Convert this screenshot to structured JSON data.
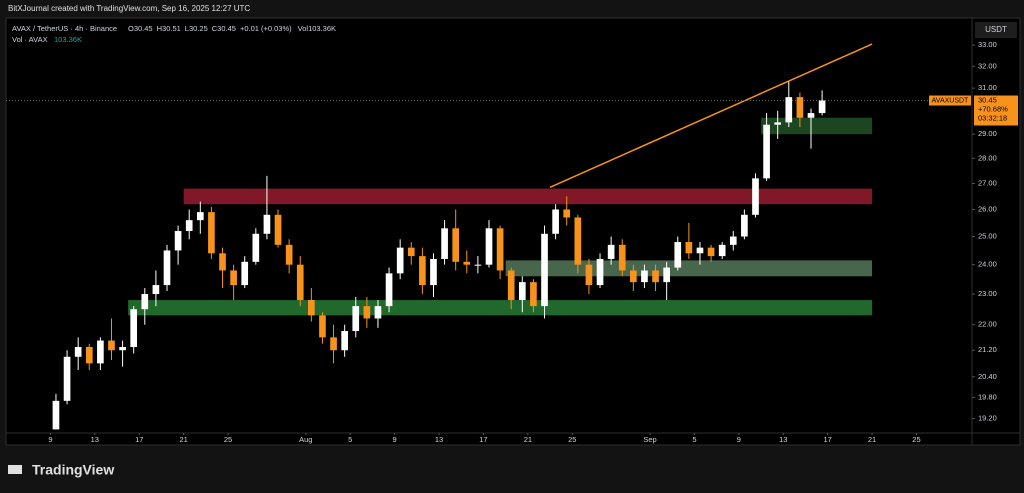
{
  "header": {
    "credit": "BitXJournal created with TradingView.com, Sep 16, 2025 12:27 UTC",
    "logo": "TradingView"
  },
  "chart_data": {
    "type": "candlestick",
    "symbol": "AVAX / TetherUS · 4h · Binance",
    "ohlc": [
      "O30.45",
      "H30.51",
      "L30.25",
      "C30.45",
      "+0.01 (+0.03%)"
    ],
    "volume_label": "Vol103.36K",
    "volume_series": "Vol · AVAX",
    "volume_last": "103.36K",
    "currency": "USDT",
    "log_scale": true,
    "up_color": "#ffffff",
    "down_color": "#f7931a",
    "ylim": [
      18.83,
      34.32
    ],
    "yticks": [
      {
        "value": 33,
        "label": "33.00"
      },
      {
        "value": 32,
        "label": "32.00"
      },
      {
        "value": 31,
        "label": "31.00"
      },
      {
        "value": 29,
        "label": "29.00"
      },
      {
        "value": 28,
        "label": "28.00"
      },
      {
        "value": 27,
        "label": "27.00"
      },
      {
        "value": 26,
        "label": "26.00"
      },
      {
        "value": 25,
        "label": "25.00"
      },
      {
        "value": 24,
        "label": "24.00"
      },
      {
        "value": 23,
        "label": "23.00"
      },
      {
        "value": 22,
        "label": "22.00"
      },
      {
        "value": 21.2,
        "label": "21.20"
      },
      {
        "value": 20.4,
        "label": "20.40"
      },
      {
        "value": 19.8,
        "label": "19.80"
      },
      {
        "value": 19.2,
        "label": "19.20"
      }
    ],
    "xlim": [
      "2025-07-05",
      "2025-09-30"
    ],
    "xticks": [
      {
        "value": "2025-07-09",
        "label": "9"
      },
      {
        "value": "2025-07-13",
        "label": "13"
      },
      {
        "value": "2025-07-17",
        "label": "17"
      },
      {
        "value": "2025-07-21",
        "label": "21"
      },
      {
        "value": "2025-07-25",
        "label": "25"
      },
      {
        "value": "2025-08-01",
        "label": "Aug"
      },
      {
        "value": "2025-08-05",
        "label": "5"
      },
      {
        "value": "2025-08-09",
        "label": "9"
      },
      {
        "value": "2025-08-13",
        "label": "13"
      },
      {
        "value": "2025-08-17",
        "label": "17"
      },
      {
        "value": "2025-08-21",
        "label": "21"
      },
      {
        "value": "2025-08-25",
        "label": "25"
      },
      {
        "value": "2025-09-01",
        "label": "Sep"
      },
      {
        "value": "2025-09-05",
        "label": "5"
      },
      {
        "value": "2025-09-09",
        "label": "9"
      },
      {
        "value": "2025-09-13",
        "label": "13"
      },
      {
        "value": "2025-09-17",
        "label": "17"
      },
      {
        "value": "2025-09-21",
        "label": "21"
      },
      {
        "value": "2025-09-25",
        "label": "25"
      }
    ],
    "x": [
      "2025-07-09",
      "2025-07-10",
      "2025-07-11",
      "2025-07-12",
      "2025-07-13",
      "2025-07-14",
      "2025-07-15",
      "2025-07-16",
      "2025-07-17",
      "2025-07-18",
      "2025-07-19",
      "2025-07-20",
      "2025-07-21",
      "2025-07-22",
      "2025-07-23",
      "2025-07-24",
      "2025-07-25",
      "2025-07-26",
      "2025-07-27",
      "2025-07-28",
      "2025-07-29",
      "2025-07-30",
      "2025-07-31",
      "2025-08-01",
      "2025-08-02",
      "2025-08-03",
      "2025-08-04",
      "2025-08-05",
      "2025-08-06",
      "2025-08-07",
      "2025-08-08",
      "2025-08-09",
      "2025-08-10",
      "2025-08-11",
      "2025-08-12",
      "2025-08-13",
      "2025-08-14",
      "2025-08-15",
      "2025-08-16",
      "2025-08-17",
      "2025-08-18",
      "2025-08-19",
      "2025-08-20",
      "2025-08-21",
      "2025-08-22",
      "2025-08-23",
      "2025-08-24",
      "2025-08-25",
      "2025-08-26",
      "2025-08-27",
      "2025-08-28",
      "2025-08-29",
      "2025-08-30",
      "2025-08-31",
      "2025-09-01",
      "2025-09-02",
      "2025-09-03",
      "2025-09-04",
      "2025-09-05",
      "2025-09-06",
      "2025-09-07",
      "2025-09-08",
      "2025-09-09",
      "2025-09-10",
      "2025-09-11",
      "2025-09-12",
      "2025-09-13",
      "2025-09-14",
      "2025-09-15",
      "2025-09-16"
    ],
    "open": [
      18.9,
      19.7,
      21.0,
      21.3,
      20.8,
      21.5,
      21.2,
      21.3,
      22.5,
      23.0,
      23.3,
      24.5,
      25.2,
      25.6,
      25.9,
      24.4,
      23.8,
      23.3,
      24.1,
      25.1,
      25.8,
      24.7,
      24.0,
      22.8,
      22.3,
      21.6,
      21.2,
      21.8,
      22.6,
      22.2,
      22.6,
      23.7,
      24.6,
      24.3,
      23.3,
      24.2,
      25.3,
      24.1,
      24.0,
      24.0,
      25.3,
      23.8,
      22.8,
      23.4,
      22.6,
      25.1,
      26.0,
      25.7,
      24.0,
      23.3,
      24.2,
      24.7,
      23.8,
      23.4,
      23.8,
      23.4,
      23.9,
      24.8,
      24.4,
      24.6,
      24.3,
      24.7,
      25.0,
      25.8,
      27.2,
      29.4,
      29.5,
      30.6,
      29.7,
      29.9
    ],
    "high": [
      19.9,
      21.2,
      21.6,
      21.4,
      21.6,
      22.2,
      21.5,
      22.6,
      23.2,
      23.8,
      24.7,
      25.4,
      26.0,
      26.3,
      26.1,
      24.6,
      24.0,
      24.3,
      25.3,
      27.3,
      26.0,
      24.9,
      24.3,
      23.2,
      22.4,
      22.0,
      22.0,
      22.9,
      22.9,
      22.8,
      23.9,
      24.9,
      24.8,
      24.6,
      24.4,
      25.6,
      26.0,
      24.5,
      24.3,
      25.6,
      25.4,
      23.9,
      23.6,
      23.5,
      25.4,
      26.2,
      26.5,
      25.8,
      24.2,
      24.4,
      25.0,
      24.9,
      24.0,
      24.0,
      24.0,
      24.1,
      25.0,
      25.5,
      24.8,
      24.7,
      24.8,
      25.2,
      26.0,
      27.4,
      29.9,
      30.0,
      31.3,
      30.8,
      30.1,
      30.9
    ],
    "low": [
      18.9,
      19.6,
      20.6,
      20.6,
      20.6,
      20.9,
      20.7,
      21.1,
      22.0,
      22.6,
      23.1,
      24.0,
      24.9,
      25.1,
      24.2,
      23.2,
      22.8,
      23.2,
      24.0,
      24.9,
      24.6,
      23.7,
      22.6,
      22.1,
      21.4,
      20.8,
      21.0,
      21.6,
      21.9,
      21.9,
      22.4,
      23.5,
      24.0,
      23.0,
      22.9,
      24.0,
      23.8,
      23.7,
      23.7,
      23.9,
      23.5,
      22.5,
      22.4,
      22.4,
      22.2,
      24.9,
      25.4,
      23.7,
      23.0,
      23.2,
      24.0,
      23.6,
      23.1,
      23.2,
      23.1,
      22.8,
      23.8,
      24.2,
      24.0,
      24.1,
      24.2,
      24.5,
      24.9,
      25.7,
      27.1,
      28.8,
      29.3,
      29.3,
      28.4,
      29.8
    ],
    "close": [
      19.7,
      21.0,
      21.3,
      20.8,
      21.5,
      21.2,
      21.3,
      22.5,
      23.0,
      23.3,
      24.5,
      25.2,
      25.6,
      25.9,
      24.4,
      23.8,
      23.3,
      24.1,
      25.1,
      25.8,
      24.7,
      24.0,
      22.8,
      22.3,
      21.6,
      21.2,
      21.8,
      22.6,
      22.2,
      22.6,
      23.7,
      24.6,
      24.3,
      23.3,
      24.2,
      25.3,
      24.1,
      24.0,
      24.0,
      25.3,
      23.8,
      22.8,
      23.4,
      22.6,
      25.1,
      26.0,
      25.7,
      24.0,
      23.3,
      24.2,
      24.7,
      23.8,
      23.4,
      23.8,
      23.4,
      23.9,
      24.8,
      24.4,
      24.6,
      24.3,
      24.7,
      25.0,
      25.8,
      27.2,
      29.4,
      29.5,
      30.6,
      29.7,
      29.9,
      30.45
    ],
    "zones": [
      {
        "low": 26.2,
        "high": 26.8,
        "start": "2025-07-21",
        "end": "2025-09-21",
        "color": "rgba(160,30,50,0.8)"
      },
      {
        "low": 22.3,
        "high": 22.8,
        "start": "2025-07-16",
        "end": "2025-09-21",
        "color": "rgba(40,130,55,0.8)"
      },
      {
        "low": 23.6,
        "high": 24.15,
        "start": "2025-08-19",
        "end": "2025-09-21",
        "color": "rgba(120,170,125,0.6)"
      },
      {
        "low": 29.0,
        "high": 29.7,
        "start": "2025-09-11",
        "end": "2025-09-21",
        "color": "rgba(40,100,45,0.7)"
      }
    ],
    "trendline": {
      "x": [
        "2025-08-23",
        "2025-09-21"
      ],
      "y": [
        26.85,
        33.05
      ],
      "color": "#f7931a"
    },
    "price_label": {
      "symbol": "AVAXUSDT",
      "price": 30.45,
      "change": "+70.68%",
      "countdown": "03:32:18"
    }
  }
}
